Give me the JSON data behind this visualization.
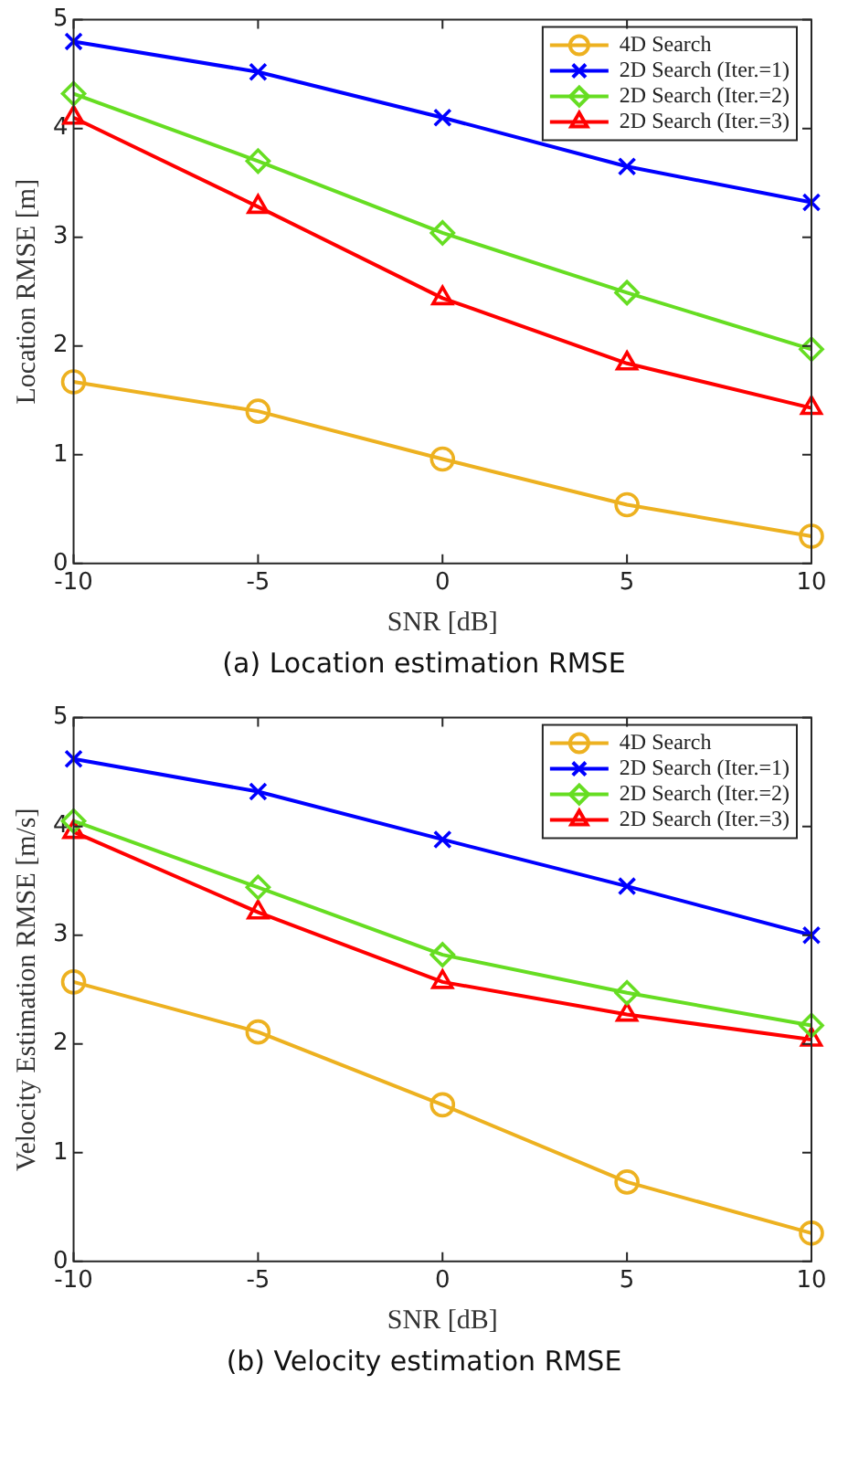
{
  "chart_data": [
    {
      "type": "line",
      "title": "(a) Location estimation RMSE",
      "xlabel": "SNR [dB]",
      "ylabel": "Location RMSE [m]",
      "x": [
        -10,
        -5,
        0,
        5,
        10
      ],
      "xlim": [
        -10,
        10
      ],
      "xticks": [
        -10,
        -5,
        0,
        5,
        10
      ],
      "ylim": [
        0,
        5
      ],
      "yticks": [
        0,
        1,
        2,
        3,
        4,
        5
      ],
      "grid": false,
      "legend": "top right",
      "line_style": "solid",
      "series": [
        {
          "name": "4D Search",
          "color": "#edb120",
          "marker": "circle",
          "values": [
            1.67,
            1.4,
            0.96,
            0.54,
            0.25
          ]
        },
        {
          "name": "2D Search (Iter.=1)",
          "color": "#0000ff",
          "marker": "cross",
          "values": [
            4.8,
            4.52,
            4.1,
            3.65,
            3.32
          ]
        },
        {
          "name": "2D Search (Iter.=2)",
          "color": "#66dd22",
          "marker": "diamond",
          "values": [
            4.32,
            3.7,
            3.04,
            2.49,
            1.97
          ]
        },
        {
          "name": "2D Search (Iter.=3)",
          "color": "#ff0000",
          "marker": "triangle",
          "values": [
            4.1,
            3.28,
            2.44,
            1.84,
            1.43
          ]
        }
      ]
    },
    {
      "type": "line",
      "title": "(b) Velocity estimation RMSE",
      "xlabel": "SNR [dB]",
      "ylabel": "Velocity Estimation RMSE [m/s]",
      "x": [
        -10,
        -5,
        0,
        5,
        10
      ],
      "xlim": [
        -10,
        10
      ],
      "xticks": [
        -10,
        -5,
        0,
        5,
        10
      ],
      "ylim": [
        0,
        5
      ],
      "yticks": [
        0,
        1,
        2,
        3,
        4,
        5
      ],
      "grid": false,
      "legend": "top right",
      "line_style": "solid",
      "series": [
        {
          "name": "4D Search",
          "color": "#edb120",
          "marker": "circle",
          "values": [
            2.57,
            2.11,
            1.44,
            0.73,
            0.26
          ]
        },
        {
          "name": "2D Search (Iter.=1)",
          "color": "#0000ff",
          "marker": "cross",
          "values": [
            4.62,
            4.32,
            3.88,
            3.45,
            3.0
          ]
        },
        {
          "name": "2D Search (Iter.=2)",
          "color": "#66dd22",
          "marker": "diamond",
          "values": [
            4.05,
            3.44,
            2.82,
            2.47,
            2.17
          ]
        },
        {
          "name": "2D Search (Iter.=3)",
          "color": "#ff0000",
          "marker": "triangle",
          "values": [
            3.95,
            3.21,
            2.57,
            2.27,
            2.04
          ]
        }
      ]
    }
  ]
}
